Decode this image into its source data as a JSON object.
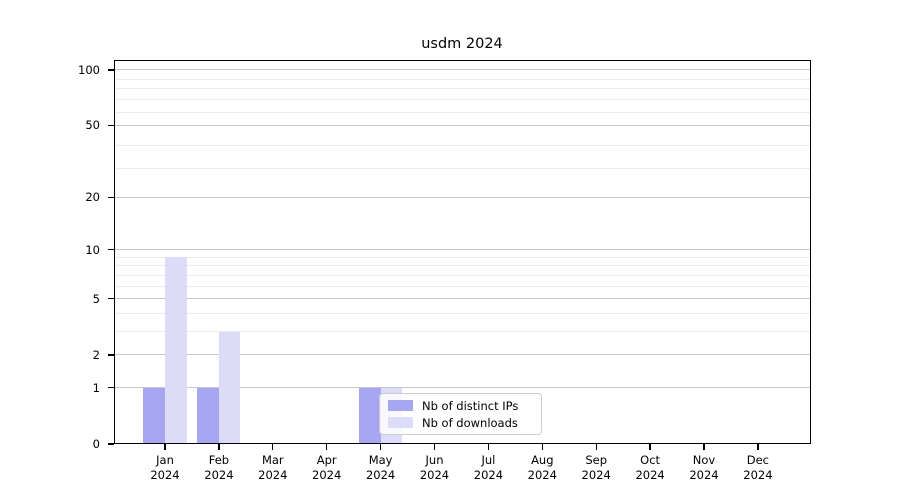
{
  "title": "usdm 2024",
  "legend": {
    "items": [
      {
        "label": "Nb of distinct IPs",
        "color": "#a6a6f2"
      },
      {
        "label": "Nb of downloads",
        "color": "#dcdcf9"
      }
    ]
  },
  "chart_data": {
    "type": "bar",
    "title": "usdm 2024",
    "categories": [
      "Jan",
      "Feb",
      "Mar",
      "Apr",
      "May",
      "Jun",
      "Jul",
      "Aug",
      "Sep",
      "Oct",
      "Nov",
      "Dec"
    ],
    "x_year_sublabel": "2024",
    "series": [
      {
        "name": "Nb of distinct IPs",
        "color": "#a6a6f2",
        "values": [
          1,
          1,
          0,
          0,
          1,
          0,
          0,
          0,
          0,
          0,
          0,
          0
        ]
      },
      {
        "name": "Nb of downloads",
        "color": "#dcdcf9",
        "values": [
          9,
          3,
          0,
          0,
          1,
          0,
          0,
          0,
          0,
          0,
          0,
          0
        ]
      }
    ],
    "xlabel": "",
    "ylabel": "",
    "y_scale": "log10(1+value)",
    "ylim": [
      0,
      112
    ],
    "y_major_ticks": [
      0,
      1,
      2,
      5,
      10,
      20,
      50,
      100
    ],
    "y_minor_gridlines": [
      3,
      4,
      6,
      7,
      8,
      9,
      29,
      39,
      59,
      69,
      79,
      89
    ],
    "grid": "horizontal",
    "legend_position": "inside lower-center",
    "colors": {
      "bar_distinct_ips": "#a6a6f2",
      "bar_downloads": "#dcdcf9",
      "grid_major": "#c8c8c8",
      "grid_minor": "#eaeaea",
      "axis": "#000000",
      "legend_border": "#cccccc"
    }
  }
}
